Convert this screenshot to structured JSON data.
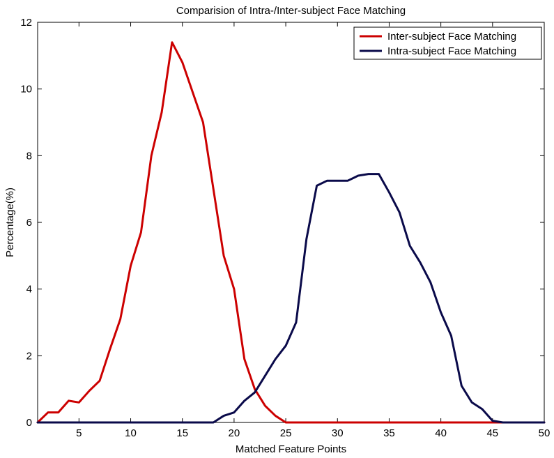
{
  "chart_data": {
    "type": "line",
    "title": "Comparision of Intra-/Inter-subject Face Matching",
    "xlabel": "Matched Feature Points",
    "ylabel": "Percentage(%)",
    "xlim": [
      1,
      50
    ],
    "ylim": [
      0,
      12
    ],
    "xticks": [
      5,
      10,
      15,
      20,
      25,
      30,
      35,
      40,
      45,
      50
    ],
    "yticks": [
      0,
      2,
      4,
      6,
      8,
      10,
      12
    ],
    "grid": false,
    "legend_position": "top-right",
    "series": [
      {
        "name": "Inter-subject Face Matching",
        "color": "#cc0000",
        "x": [
          1,
          2,
          3,
          4,
          5,
          6,
          7,
          8,
          9,
          10,
          11,
          12,
          13,
          14,
          15,
          16,
          17,
          18,
          19,
          20,
          21,
          22,
          23,
          24,
          25,
          26,
          27,
          28,
          29,
          30,
          31,
          32,
          33,
          34,
          35,
          36,
          37,
          38,
          39,
          40,
          41,
          42,
          43,
          44,
          45,
          46,
          47,
          48,
          49,
          50
        ],
        "values": [
          0.0,
          0.3,
          0.3,
          0.65,
          0.6,
          0.95,
          1.25,
          2.2,
          3.1,
          4.7,
          5.7,
          8.0,
          9.3,
          11.4,
          10.8,
          9.9,
          9.0,
          7.0,
          5.0,
          4.0,
          1.9,
          1.0,
          0.5,
          0.2,
          0.0,
          0.0,
          0.0,
          0.0,
          0.0,
          0.0,
          0.0,
          0.0,
          0.0,
          0.0,
          0.0,
          0.0,
          0.0,
          0.0,
          0.0,
          0.0,
          0.0,
          0.0,
          0.0,
          0.0,
          0.0,
          0.0,
          0.0,
          0.0,
          0.0,
          0.0
        ]
      },
      {
        "name": "Intra-subject Face Matching",
        "color": "#0a0a4a",
        "x": [
          1,
          2,
          3,
          4,
          5,
          6,
          7,
          8,
          9,
          10,
          11,
          12,
          13,
          14,
          15,
          16,
          17,
          18,
          19,
          20,
          21,
          22,
          23,
          24,
          25,
          26,
          27,
          28,
          29,
          30,
          31,
          32,
          33,
          34,
          35,
          36,
          37,
          38,
          39,
          40,
          41,
          42,
          43,
          44,
          45,
          46,
          47,
          48,
          49,
          50
        ],
        "values": [
          0.0,
          0.0,
          0.0,
          0.0,
          0.0,
          0.0,
          0.0,
          0.0,
          0.0,
          0.0,
          0.0,
          0.0,
          0.0,
          0.0,
          0.0,
          0.0,
          0.0,
          0.0,
          0.2,
          0.3,
          0.65,
          0.9,
          1.4,
          1.9,
          2.3,
          3.0,
          5.5,
          7.1,
          7.25,
          7.25,
          7.25,
          7.4,
          7.45,
          7.45,
          6.9,
          6.3,
          5.3,
          4.8,
          4.2,
          3.3,
          2.6,
          1.1,
          0.6,
          0.4,
          0.05,
          0.0,
          0.0,
          0.0,
          0.0,
          0.0
        ]
      }
    ]
  }
}
